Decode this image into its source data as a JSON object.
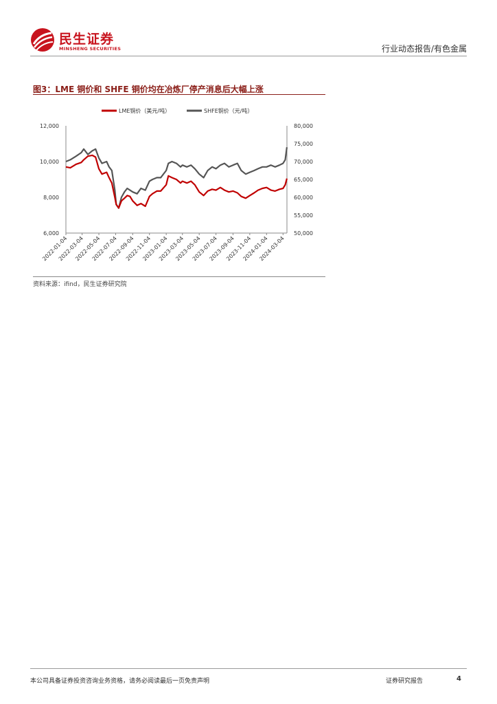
{
  "header": {
    "logo_cn": "民生证券",
    "logo_en": "MINSHENG SECURITIES",
    "category": "行业动态报告/有色金属"
  },
  "figure": {
    "title": "图3：LME 铜价和 SHFE 铜价均在冶炼厂停产消息后大幅上涨",
    "source": "资料来源：ifind，民生证券研究院"
  },
  "footer": {
    "disclaimer": "本公司具备证券投资咨询业务资格，请务必阅读最后一页免责声明",
    "report_type": "证券研究报告",
    "page": "4"
  },
  "colors": {
    "brand": "#c8141e",
    "lme": "#c00000",
    "shfe": "#555555",
    "title": "#8a1d17"
  },
  "chart_data": {
    "type": "line",
    "legend_position": "top",
    "grid": false,
    "x_ticks": [
      "2022-01-04",
      "2022-03-04",
      "2022-05-04",
      "2022-07-04",
      "2022-09-04",
      "2022-11-04",
      "2023-01-04",
      "2023-03-04",
      "2023-05-04",
      "2023-07-04",
      "2023-09-04",
      "2023-11-04",
      "2024-01-04",
      "2024-03-04"
    ],
    "y_left": {
      "min": 6000,
      "max": 12000,
      "ticks": [
        "6,000",
        "8,000",
        "10,000",
        "12,000"
      ]
    },
    "y_right": {
      "min": 50000,
      "max": 80000,
      "ticks": [
        "50,000",
        "55,000",
        "60,000",
        "65,000",
        "70,000",
        "75,000",
        "80,000"
      ]
    },
    "series": [
      {
        "name": "LME铜价（美元/吨）",
        "axis": "left",
        "color": "#c00000",
        "x": [
          "2022-01-04",
          "2022-01-20",
          "2022-02-10",
          "2022-03-01",
          "2022-03-10",
          "2022-03-25",
          "2022-04-10",
          "2022-04-22",
          "2022-05-04",
          "2022-05-15",
          "2022-06-01",
          "2022-06-10",
          "2022-06-20",
          "2022-07-01",
          "2022-07-06",
          "2022-07-15",
          "2022-07-25",
          "2022-08-05",
          "2022-08-15",
          "2022-08-25",
          "2022-09-04",
          "2022-09-20",
          "2022-10-04",
          "2022-10-20",
          "2022-11-04",
          "2022-11-15",
          "2022-12-01",
          "2022-12-15",
          "2023-01-04",
          "2023-01-12",
          "2023-01-25",
          "2023-02-10",
          "2023-02-25",
          "2023-03-04",
          "2023-03-20",
          "2023-04-04",
          "2023-04-18",
          "2023-05-04",
          "2023-05-20",
          "2023-06-04",
          "2023-06-20",
          "2023-07-04",
          "2023-07-20",
          "2023-08-04",
          "2023-08-20",
          "2023-09-04",
          "2023-09-20",
          "2023-10-04",
          "2023-10-20",
          "2023-11-04",
          "2023-11-20",
          "2023-12-04",
          "2023-12-20",
          "2024-01-04",
          "2024-01-20",
          "2024-02-04",
          "2024-02-20",
          "2024-03-04",
          "2024-03-12",
          "2024-03-18"
        ],
        "values": [
          9700,
          9650,
          9850,
          9950,
          10100,
          10300,
          10350,
          10250,
          9600,
          9300,
          9400,
          9100,
          8800,
          8000,
          7600,
          7400,
          7800,
          7950,
          8100,
          8050,
          7800,
          7550,
          7650,
          7500,
          8050,
          8200,
          8350,
          8350,
          8700,
          9200,
          9100,
          9000,
          8800,
          8900,
          8800,
          8900,
          8700,
          8300,
          8100,
          8350,
          8450,
          8400,
          8550,
          8400,
          8300,
          8350,
          8250,
          8050,
          7950,
          8100,
          8250,
          8400,
          8500,
          8550,
          8400,
          8350,
          8450,
          8500,
          8700,
          9050
        ]
      },
      {
        "name": "SHFE铜价（元/吨）",
        "axis": "right",
        "color": "#555555",
        "x": [
          "2022-01-04",
          "2022-01-20",
          "2022-02-10",
          "2022-03-01",
          "2022-03-10",
          "2022-03-25",
          "2022-04-10",
          "2022-04-22",
          "2022-05-04",
          "2022-05-15",
          "2022-06-01",
          "2022-06-10",
          "2022-06-20",
          "2022-07-01",
          "2022-07-06",
          "2022-07-15",
          "2022-07-25",
          "2022-08-05",
          "2022-08-15",
          "2022-08-25",
          "2022-09-04",
          "2022-09-20",
          "2022-10-04",
          "2022-10-20",
          "2022-11-04",
          "2022-11-15",
          "2022-12-01",
          "2022-12-15",
          "2023-01-04",
          "2023-01-12",
          "2023-01-25",
          "2023-02-10",
          "2023-02-25",
          "2023-03-04",
          "2023-03-20",
          "2023-04-04",
          "2023-04-18",
          "2023-05-04",
          "2023-05-20",
          "2023-06-04",
          "2023-06-20",
          "2023-07-04",
          "2023-07-20",
          "2023-08-04",
          "2023-08-20",
          "2023-09-04",
          "2023-09-20",
          "2023-10-04",
          "2023-10-20",
          "2023-11-04",
          "2023-11-20",
          "2023-12-04",
          "2023-12-20",
          "2024-01-04",
          "2024-01-20",
          "2024-02-04",
          "2024-02-20",
          "2024-03-04",
          "2024-03-12",
          "2024-03-18"
        ],
        "values": [
          70000,
          70500,
          71500,
          72500,
          73500,
          72000,
          73000,
          73500,
          71000,
          69500,
          70000,
          68500,
          67500,
          62000,
          58000,
          57000,
          60000,
          61500,
          62500,
          62000,
          61500,
          61000,
          62500,
          62000,
          64500,
          65000,
          65500,
          65500,
          67500,
          69500,
          70000,
          69500,
          68500,
          69000,
          68500,
          69000,
          68000,
          66500,
          65500,
          67500,
          68500,
          68000,
          69000,
          69500,
          68500,
          69000,
          69500,
          67500,
          66500,
          67000,
          67500,
          68000,
          68500,
          68500,
          69000,
          68500,
          69000,
          69500,
          70500,
          74000
        ]
      }
    ]
  }
}
